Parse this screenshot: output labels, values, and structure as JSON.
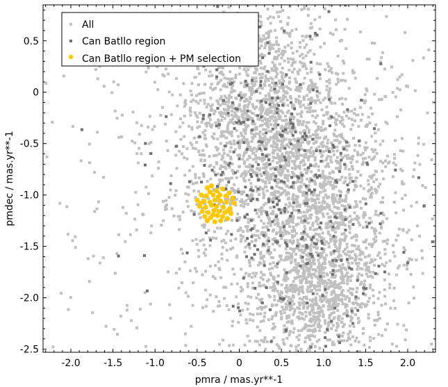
{
  "chart_data": {
    "type": "scatter",
    "xlabel": "pmra / mas.yr**-1",
    "ylabel": "pmdec / mas.yr**-1",
    "xlim": [
      -2.33,
      2.33
    ],
    "ylim": [
      -2.53,
      0.85
    ],
    "x_ticks": [
      -2.0,
      -1.5,
      -1.0,
      -0.5,
      0,
      0.5,
      1.0,
      1.5,
      2.0
    ],
    "x_tick_labels": [
      "-2.0",
      "-1.5",
      "-1.0",
      "-0.5",
      "0",
      "0.5",
      "1.0",
      "1.5",
      "2.0"
    ],
    "y_ticks": [
      0.5,
      0,
      -0.5,
      -1.0,
      -1.5,
      -2.0,
      -2.5
    ],
    "y_tick_labels": [
      "0.5",
      "0",
      "-0.5",
      "-1.0",
      "-1.5",
      "-2.0",
      "-2.5"
    ],
    "grid": false,
    "legend": "top-left",
    "series": [
      {
        "name": "All",
        "marker": "small-square",
        "color": "#c0c0c0",
        "approx_count": 4200,
        "clusters": [
          {
            "cx": 0.3,
            "cy": -0.2,
            "sx": 0.5,
            "sy": 0.55,
            "weight": 0.35
          },
          {
            "cx": 0.85,
            "cy": -1.2,
            "sx": 0.55,
            "sy": 0.6,
            "weight": 0.35
          },
          {
            "cx": 0.9,
            "cy": -2.0,
            "sx": 0.35,
            "sy": 0.3,
            "weight": 0.15
          },
          {
            "cx": 0.0,
            "cy": -1.0,
            "sx": 1.3,
            "sy": 1.1,
            "weight": 0.15
          }
        ]
      },
      {
        "name": "Can Batllo region",
        "marker": "small-square",
        "color": "#707070",
        "approx_count": 380,
        "clusters": [
          {
            "cx": 0.35,
            "cy": -0.4,
            "sx": 0.5,
            "sy": 0.55,
            "weight": 0.45
          },
          {
            "cx": 0.9,
            "cy": -1.4,
            "sx": 0.55,
            "sy": 0.55,
            "weight": 0.45
          },
          {
            "cx": 0.3,
            "cy": -1.0,
            "sx": 1.1,
            "sy": 1.0,
            "weight": 0.1
          }
        ]
      },
      {
        "name": "Can Batllo region + PM selection",
        "marker": "circle",
        "color": "#ffc800",
        "points": [
          [
            -0.38,
            -0.93
          ],
          [
            -0.33,
            -0.91
          ],
          [
            -0.27,
            -0.96
          ],
          [
            -0.2,
            -0.94
          ],
          [
            -0.12,
            -0.98
          ],
          [
            -0.45,
            -1.0
          ],
          [
            -0.39,
            -1.01
          ],
          [
            -0.31,
            -1.0
          ],
          [
            -0.25,
            -1.02
          ],
          [
            -0.16,
            -1.01
          ],
          [
            -0.08,
            -1.03
          ],
          [
            -0.5,
            -1.05
          ],
          [
            -0.42,
            -1.06
          ],
          [
            -0.35,
            -1.07
          ],
          [
            -0.29,
            -1.05
          ],
          [
            -0.22,
            -1.06
          ],
          [
            -0.15,
            -1.07
          ],
          [
            -0.06,
            -1.08
          ],
          [
            -0.47,
            -1.11
          ],
          [
            -0.4,
            -1.12
          ],
          [
            -0.33,
            -1.1
          ],
          [
            -0.27,
            -1.11
          ],
          [
            -0.19,
            -1.12
          ],
          [
            -0.11,
            -1.13
          ],
          [
            -0.44,
            -1.16
          ],
          [
            -0.37,
            -1.17
          ],
          [
            -0.3,
            -1.15
          ],
          [
            -0.24,
            -1.16
          ],
          [
            -0.17,
            -1.17
          ],
          [
            -0.1,
            -1.18
          ],
          [
            -0.41,
            -1.21
          ],
          [
            -0.34,
            -1.22
          ],
          [
            -0.26,
            -1.2
          ],
          [
            -0.2,
            -1.21
          ],
          [
            -0.14,
            -1.23
          ],
          [
            -0.38,
            -1.25
          ],
          [
            -0.29,
            -1.26
          ],
          [
            -0.22,
            -1.25
          ],
          [
            -0.35,
            -0.97
          ],
          [
            -0.13,
            -1.15
          ],
          [
            -0.46,
            -1.08
          ],
          [
            -0.23,
            -1.0
          ],
          [
            -0.31,
            -1.19
          ]
        ]
      }
    ]
  }
}
